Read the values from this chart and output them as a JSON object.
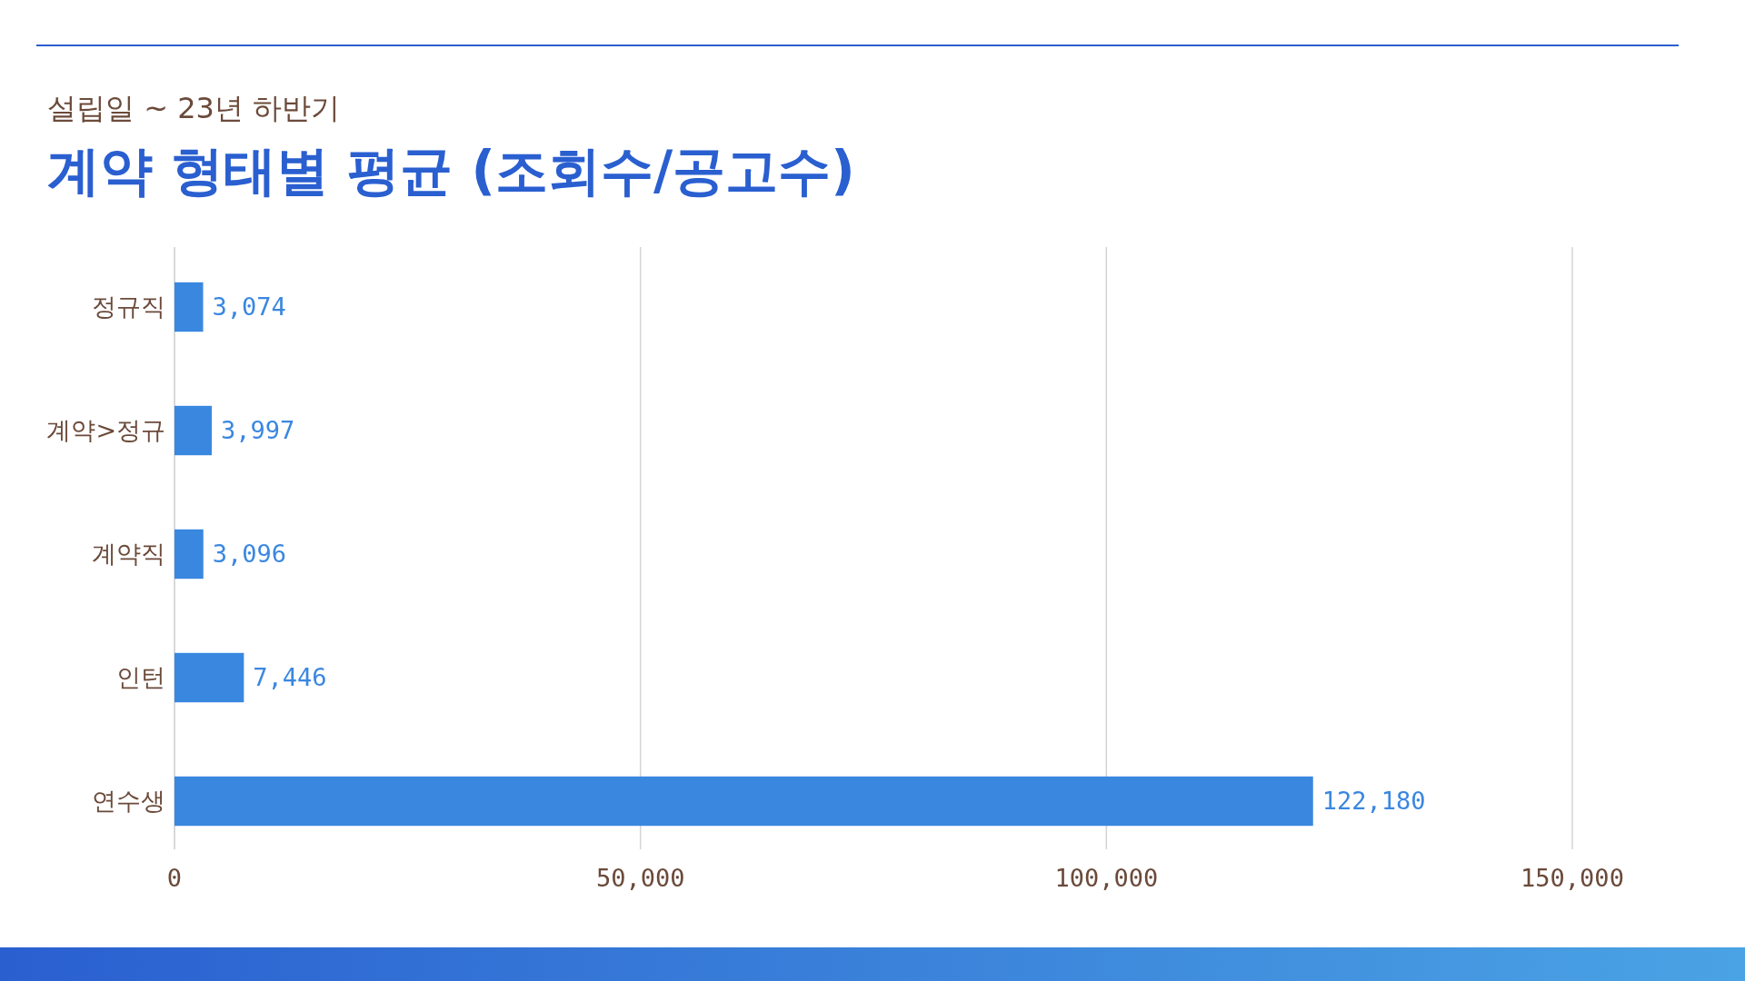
{
  "chart_data": {
    "type": "bar",
    "orientation": "horizontal",
    "subtitle": "설립일 ~ 23년 하반기",
    "title": "계약 형태별 평균 (조회수/공고수)",
    "categories": [
      "정규직",
      "계약>정규",
      "계약직",
      "인턴",
      "연수생"
    ],
    "values": [
      3074,
      3997,
      3096,
      7446,
      122180
    ],
    "color": "#3a87e0",
    "xlim": [
      0,
      150000
    ],
    "xticks": [
      0,
      {
        "value": 50000,
        "label": "50,000"
      },
      {
        "value": 100000,
        "label": "100,000"
      },
      {
        "value": 150000,
        "label": "150,000"
      }
    ],
    "value_labels": [
      "3,074",
      "3,997",
      "3,096",
      "7,446",
      "122,180"
    ],
    "grid": "x"
  }
}
